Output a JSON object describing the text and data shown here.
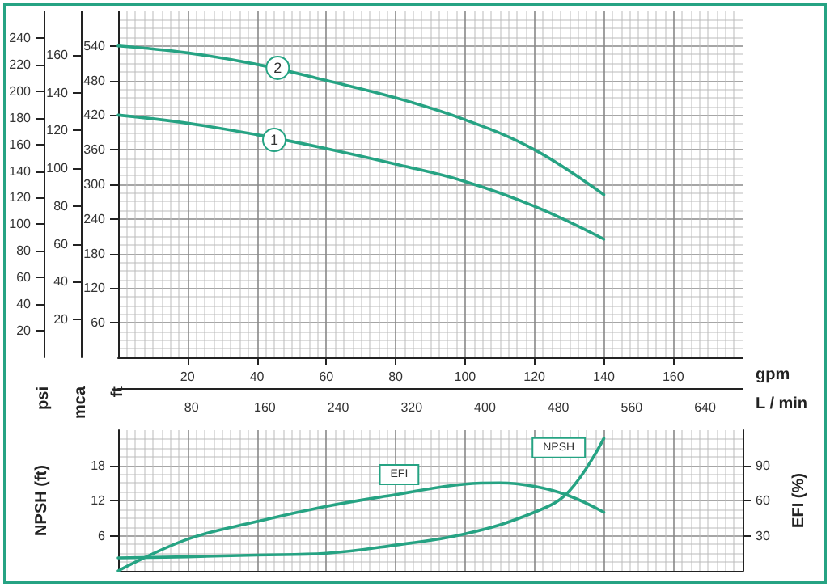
{
  "chart_data": [
    {
      "type": "line",
      "xlabel": "gpm",
      "xlim": [
        0,
        180
      ],
      "xticks": [
        20,
        40,
        60,
        80,
        100,
        120,
        140,
        160
      ],
      "x2label": "L / min",
      "x2lim": [
        0,
        681
      ],
      "x2ticks": [
        80,
        160,
        240,
        320,
        400,
        480,
        560,
        640
      ],
      "ylabel": "ft",
      "ylim": [
        0,
        600
      ],
      "yticks": [
        60,
        120,
        180,
        240,
        300,
        360,
        420,
        480,
        540
      ],
      "y2label": "psi",
      "y2lim": [
        0,
        260
      ],
      "y2ticks": [
        20,
        40,
        60,
        80,
        100,
        120,
        140,
        160,
        180,
        200,
        220,
        240
      ],
      "y3label": "mca",
      "y3lim": [
        0,
        183
      ],
      "y3ticks": [
        20,
        40,
        60,
        80,
        100,
        120,
        140,
        160
      ],
      "grid": true,
      "marker": "none",
      "line_style": "solid",
      "series": [
        {
          "color": "#26a383",
          "x": [
            0,
            20,
            40,
            60,
            80,
            100,
            120,
            140
          ],
          "values": [
            420,
            406,
            386,
            362,
            335,
            305,
            262,
            205
          ]
        },
        {
          "color": "#26a383",
          "x": [
            0,
            20,
            40,
            60,
            80,
            100,
            120,
            140
          ],
          "values": [
            540,
            528,
            508,
            480,
            450,
            412,
            360,
            282
          ]
        }
      ],
      "annotations": [
        {
          "text": "1",
          "x": 45,
          "y": 377
        },
        {
          "text": "2",
          "x": 46,
          "y": 502
        }
      ]
    },
    {
      "type": "line",
      "xlim": [
        0,
        180
      ],
      "xticks": [
        20,
        40,
        60,
        80,
        100,
        120,
        140,
        160
      ],
      "ylabel": "NPSH (ft)",
      "ylim": [
        0,
        24
      ],
      "yticks": [
        6,
        12,
        18
      ],
      "y2label": "EFI (%)",
      "y2lim": [
        0,
        120
      ],
      "y2ticks": [
        30,
        60,
        90
      ],
      "tick_labels": "y",
      "grid": true,
      "marker": "none",
      "line_style": "solid",
      "series": [
        {
          "color": "#26a383",
          "x": [
            0,
            20,
            40,
            60,
            80,
            100,
            120,
            130,
            140
          ],
          "values": [
            2.2,
            2.4,
            2.7,
            3,
            4.4,
            6.3,
            10,
            13.6,
            22.6
          ]
        },
        {
          "color": "#26a383",
          "axis": "y2",
          "x": [
            0,
            20,
            40,
            60,
            80,
            100,
            110,
            120,
            130,
            140
          ],
          "values": [
            0,
            27,
            42,
            55,
            65,
            74,
            75,
            72,
            64,
            50
          ]
        }
      ],
      "annotations": [
        {
          "text": "EFI",
          "x": 81,
          "y": 16.4
        },
        {
          "text": "NPSH",
          "x": 127,
          "y": 21
        }
      ]
    }
  ]
}
